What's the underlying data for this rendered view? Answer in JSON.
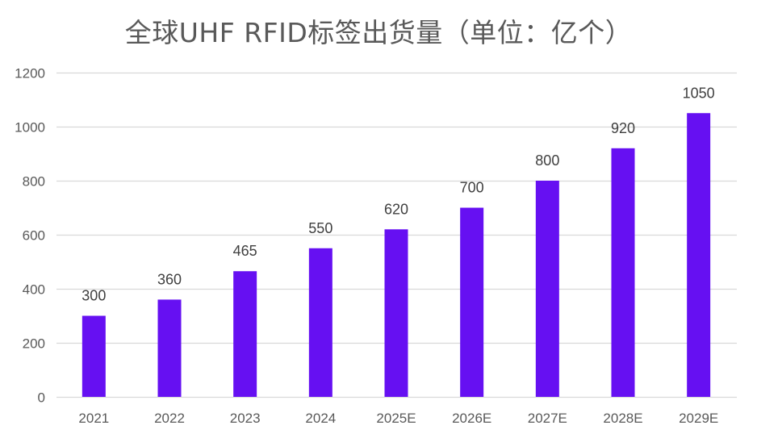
{
  "chart_data": {
    "type": "bar",
    "title": "全球UHF RFID标签出货量（单位：亿个）",
    "xlabel": "",
    "ylabel": "",
    "categories": [
      "2021",
      "2022",
      "2023",
      "2024",
      "2025E",
      "2026E",
      "2027E",
      "2028E",
      "2029E"
    ],
    "values": [
      300,
      360,
      465,
      550,
      620,
      700,
      800,
      920,
      1050
    ],
    "ylim": [
      0,
      1200
    ],
    "yticks": [
      0,
      200,
      400,
      600,
      800,
      1000,
      1200
    ],
    "grid": true,
    "legend": "none",
    "bar_color": "#6610F2",
    "grid_color": "#D9D9D9"
  }
}
